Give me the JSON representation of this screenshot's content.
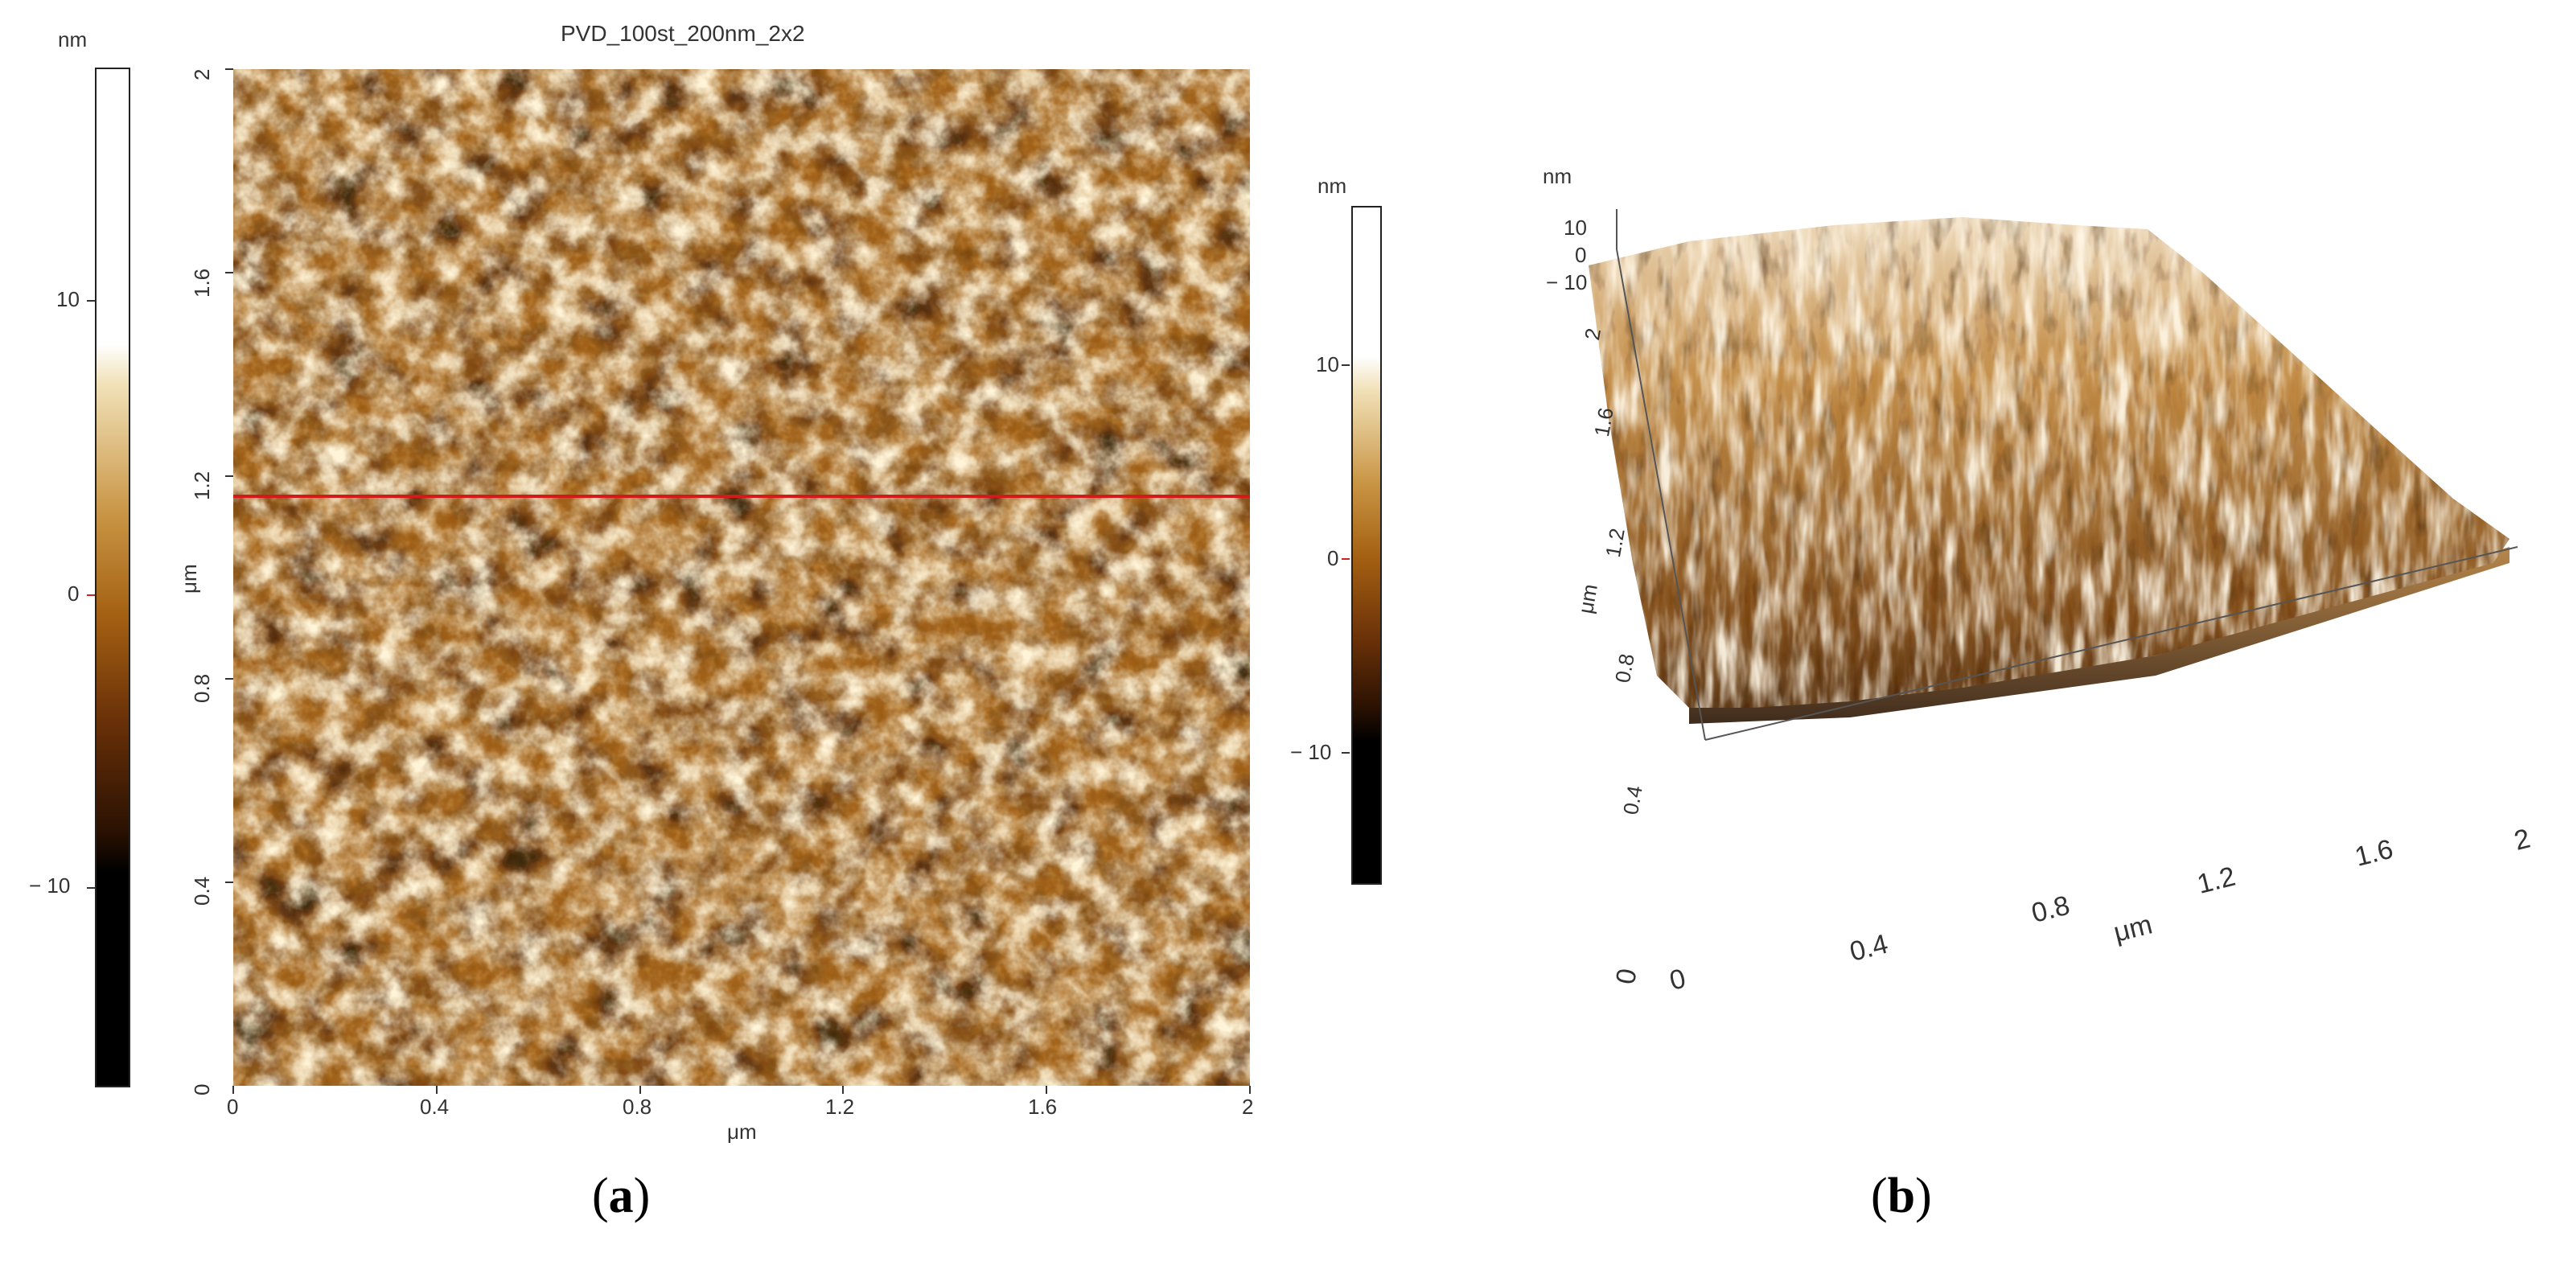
{
  "panel_a": {
    "title": "PVD_100st_200nm_2x2",
    "colorbar_unit": "nm",
    "colorbar_ticks": [
      "10",
      "0",
      "− 10"
    ],
    "x_ticks": [
      "0",
      "0.4",
      "0.8",
      "1.2",
      "1.6",
      "2"
    ],
    "y_ticks": [
      "0",
      "0.4",
      "0.8",
      "1.2",
      "1.6",
      "2"
    ],
    "x_label": "μm",
    "y_label": "μm",
    "profile_line_y_um": 1.16,
    "profile_line_color": "#d21a1a",
    "line_bar_unit": "nm",
    "line_bar_ticks": [
      "10",
      "0",
      "− 10"
    ],
    "caption_open": "(",
    "caption_letter": "a",
    "caption_close": ")"
  },
  "panel_b": {
    "z_unit": "nm",
    "z_ticks": [
      "10",
      "0",
      "− 10"
    ],
    "x_ticks": [
      "0",
      "0.4",
      "0.8",
      "1.2",
      "1.6",
      "2"
    ],
    "y_ticks": [
      "0",
      "0.4",
      "0.8",
      "1.2",
      "1.6",
      "2"
    ],
    "x_label": "μm",
    "y_label": "μm",
    "caption_open": "(",
    "caption_letter": "b",
    "caption_close": ")"
  },
  "colors": {
    "afm_dark": "#1a0c02",
    "afm_mid": "#9a5a12",
    "afm_light": "#e8c070",
    "afm_peak": "#fff6e0"
  }
}
